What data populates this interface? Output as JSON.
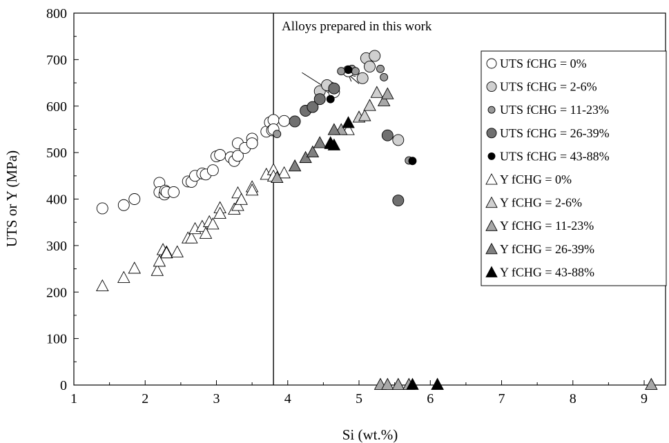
{
  "chart_data": {
    "type": "scatter",
    "title": "",
    "xlabel": "Si (wt.%)",
    "ylabel": "UTS or Y (MPa)",
    "xlim": [
      1,
      9.3
    ],
    "ylim": [
      0,
      800
    ],
    "xticks": [
      1,
      2,
      3,
      4,
      5,
      6,
      7,
      8,
      9
    ],
    "yticks": [
      0,
      100,
      200,
      300,
      400,
      500,
      600,
      700,
      800
    ],
    "grid": false,
    "legend_position": "top-right",
    "annotation": {
      "text": "Alloys prepared in this work",
      "divider_x": 3.8
    },
    "series": [
      {
        "name": "UTS fCHG = 0%",
        "marker": "circle",
        "fill": "#ffffff",
        "points": [
          [
            1.4,
            380
          ],
          [
            1.7,
            387
          ],
          [
            1.85,
            400
          ],
          [
            2.2,
            435
          ],
          [
            2.2,
            415
          ],
          [
            2.27,
            410
          ],
          [
            2.28,
            418
          ],
          [
            2.3,
            415
          ],
          [
            2.4,
            415
          ],
          [
            2.6,
            438
          ],
          [
            2.65,
            437
          ],
          [
            2.7,
            450
          ],
          [
            2.8,
            455
          ],
          [
            2.85,
            453
          ],
          [
            2.95,
            462
          ],
          [
            3.0,
            492
          ],
          [
            3.05,
            495
          ],
          [
            3.2,
            490
          ],
          [
            3.25,
            482
          ],
          [
            3.3,
            520
          ],
          [
            3.3,
            493
          ],
          [
            3.4,
            510
          ],
          [
            3.5,
            530
          ],
          [
            3.5,
            520
          ],
          [
            3.7,
            545
          ],
          [
            3.75,
            565
          ],
          [
            3.78,
            548
          ],
          [
            3.8,
            570
          ],
          [
            3.8,
            550
          ],
          [
            3.95,
            568
          ],
          [
            4.6,
            640
          ],
          [
            4.65,
            630
          ],
          [
            4.85,
            675
          ]
        ]
      },
      {
        "name": "UTS fCHG = 2-6%",
        "marker": "circle",
        "fill": "#d0d0d0",
        "points": [
          [
            4.45,
            632
          ],
          [
            4.55,
            645
          ],
          [
            5.05,
            660
          ],
          [
            5.1,
            703
          ],
          [
            5.15,
            685
          ],
          [
            5.22,
            708
          ],
          [
            5.55,
            527
          ]
        ]
      },
      {
        "name": "UTS fCHG = 11-23%",
        "marker": "circle",
        "fill": "#9a9a9a",
        "points": [
          [
            3.85,
            540
          ],
          [
            4.75,
            675
          ],
          [
            4.9,
            680
          ],
          [
            4.95,
            675
          ],
          [
            5.3,
            680
          ],
          [
            5.35,
            662
          ],
          [
            5.7,
            483
          ]
        ]
      },
      {
        "name": "UTS fCHG = 26-39%",
        "marker": "circle",
        "fill": "#707070",
        "points": [
          [
            4.1,
            567
          ],
          [
            4.25,
            590
          ],
          [
            4.35,
            598
          ],
          [
            4.45,
            615
          ],
          [
            4.65,
            638
          ],
          [
            5.4,
            537
          ],
          [
            5.55,
            397
          ]
        ]
      },
      {
        "name": "UTS fCHG = 43-88%",
        "marker": "circle",
        "fill": "#000000",
        "points": [
          [
            4.6,
            615
          ],
          [
            4.85,
            678
          ],
          [
            5.75,
            482
          ]
        ]
      },
      {
        "name": "Y fCHG = 0%",
        "marker": "triangle",
        "fill": "#ffffff",
        "points": [
          [
            1.4,
            212
          ],
          [
            1.7,
            230
          ],
          [
            1.85,
            250
          ],
          [
            2.17,
            245
          ],
          [
            2.2,
            265
          ],
          [
            2.25,
            290
          ],
          [
            2.3,
            285
          ],
          [
            2.3,
            283
          ],
          [
            2.45,
            285
          ],
          [
            2.6,
            315
          ],
          [
            2.65,
            315
          ],
          [
            2.7,
            335
          ],
          [
            2.8,
            340
          ],
          [
            2.85,
            325
          ],
          [
            2.9,
            350
          ],
          [
            2.95,
            345
          ],
          [
            3.05,
            380
          ],
          [
            3.05,
            368
          ],
          [
            3.25,
            377
          ],
          [
            3.3,
            385
          ],
          [
            3.3,
            412
          ],
          [
            3.35,
            398
          ],
          [
            3.5,
            425
          ],
          [
            3.5,
            418
          ],
          [
            3.7,
            452
          ],
          [
            3.8,
            462
          ],
          [
            3.8,
            448
          ],
          [
            3.95,
            455
          ],
          [
            4.85,
            548
          ]
        ]
      },
      {
        "name": "Y fCHG = 2-6%",
        "marker": "triangle",
        "fill": "#d0d0d0",
        "points": [
          [
            5.0,
            575
          ],
          [
            5.08,
            578
          ],
          [
            5.15,
            600
          ],
          [
            5.25,
            628
          ]
        ]
      },
      {
        "name": "Y fCHG = 11-23%",
        "marker": "triangle",
        "fill": "#a8a8a8",
        "points": [
          [
            3.85,
            445
          ],
          [
            4.75,
            548
          ],
          [
            5.35,
            610
          ],
          [
            5.4,
            625
          ],
          [
            5.3,
            0
          ],
          [
            5.4,
            0
          ],
          [
            5.55,
            0
          ],
          [
            5.7,
            0
          ],
          [
            6.1,
            0
          ],
          [
            9.1,
            0
          ]
        ]
      },
      {
        "name": "Y fCHG = 26-39%",
        "marker": "triangle",
        "fill": "#808080",
        "points": [
          [
            4.1,
            470
          ],
          [
            4.25,
            488
          ],
          [
            4.35,
            500
          ],
          [
            4.45,
            520
          ],
          [
            4.65,
            548
          ],
          [
            4.6,
            520
          ]
        ]
      },
      {
        "name": "Y fCHG = 43-88%",
        "marker": "triangle",
        "fill": "#000000",
        "points": [
          [
            4.6,
            518
          ],
          [
            4.65,
            515
          ],
          [
            4.85,
            563
          ],
          [
            5.75,
            0
          ],
          [
            6.1,
            0
          ]
        ]
      }
    ],
    "arrows": [
      {
        "from": [
          4.2,
          672
        ],
        "to": [
          4.55,
          638
        ]
      },
      {
        "from": [
          5.0,
          648
        ],
        "to": [
          4.85,
          668
        ]
      }
    ]
  }
}
